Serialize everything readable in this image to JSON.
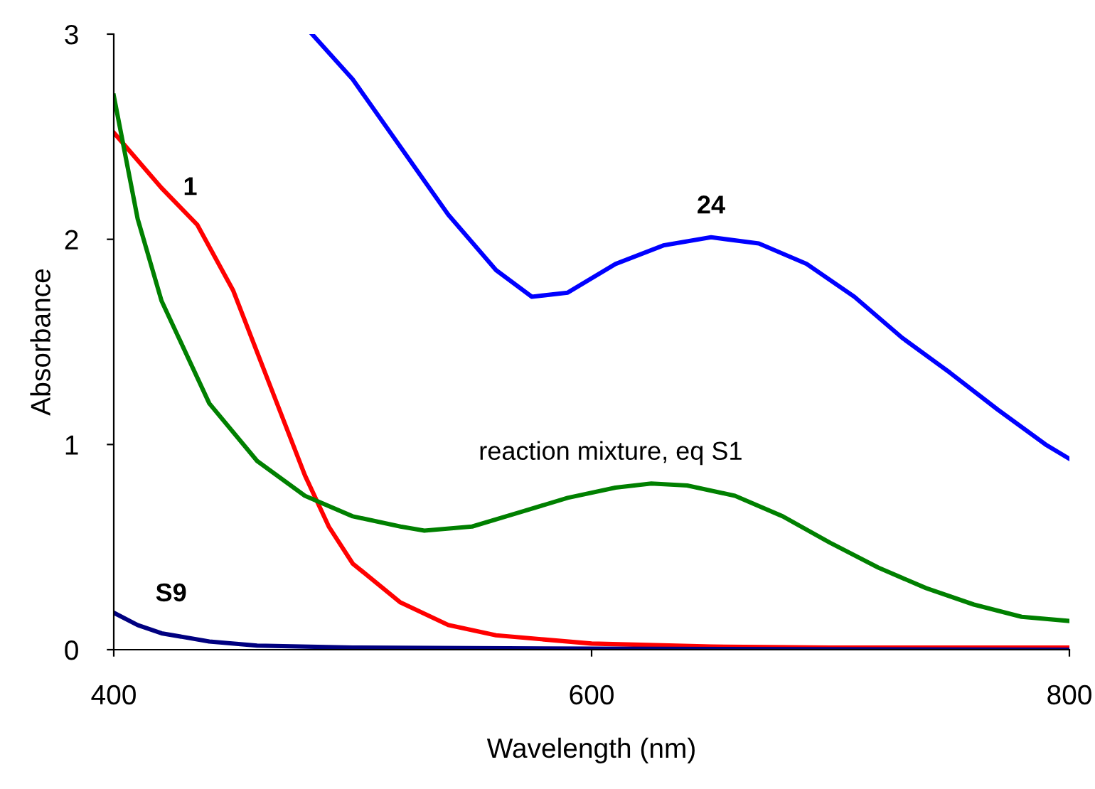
{
  "chart_data": {
    "type": "line",
    "xlabel": "Wavelength (nm)",
    "ylabel": "Absorbance",
    "xlim": [
      400,
      800
    ],
    "ylim": [
      0,
      3
    ],
    "xticks": [
      400,
      600,
      800
    ],
    "yticks": [
      0,
      1,
      2,
      3
    ],
    "grid": false,
    "legend": false,
    "marker": "none",
    "line_style": "solid",
    "series": [
      {
        "name": "24",
        "color": "#0000ff",
        "x": [
          483,
          500,
          520,
          540,
          560,
          575,
          590,
          610,
          630,
          650,
          670,
          690,
          710,
          730,
          750,
          770,
          790,
          800
        ],
        "values": [
          3.0,
          2.78,
          2.45,
          2.12,
          1.85,
          1.72,
          1.74,
          1.88,
          1.97,
          2.01,
          1.98,
          1.88,
          1.72,
          1.52,
          1.35,
          1.17,
          1.0,
          0.93
        ]
      },
      {
        "name": "1",
        "color": "#ff0000",
        "x": [
          400,
          420,
          435,
          450,
          465,
          480,
          490,
          500,
          520,
          540,
          560,
          600,
          650,
          700,
          800
        ],
        "values": [
          2.52,
          2.25,
          2.07,
          1.75,
          1.3,
          0.85,
          0.6,
          0.42,
          0.23,
          0.12,
          0.07,
          0.03,
          0.015,
          0.01,
          0.01
        ]
      },
      {
        "name": "reaction mixture, eq S1",
        "color": "#008000",
        "x": [
          400,
          410,
          420,
          440,
          460,
          480,
          500,
          520,
          530,
          550,
          570,
          590,
          610,
          625,
          640,
          660,
          680,
          700,
          720,
          740,
          760,
          780,
          800
        ],
        "values": [
          2.7,
          2.1,
          1.7,
          1.2,
          0.92,
          0.75,
          0.65,
          0.6,
          0.58,
          0.6,
          0.67,
          0.74,
          0.79,
          0.81,
          0.8,
          0.75,
          0.65,
          0.52,
          0.4,
          0.3,
          0.22,
          0.16,
          0.14
        ]
      },
      {
        "name": "S9",
        "color": "#000080",
        "x": [
          400,
          410,
          420,
          440,
          460,
          500,
          600,
          800
        ],
        "values": [
          0.18,
          0.12,
          0.08,
          0.04,
          0.02,
          0.01,
          0.005,
          0.0
        ]
      }
    ]
  }
}
